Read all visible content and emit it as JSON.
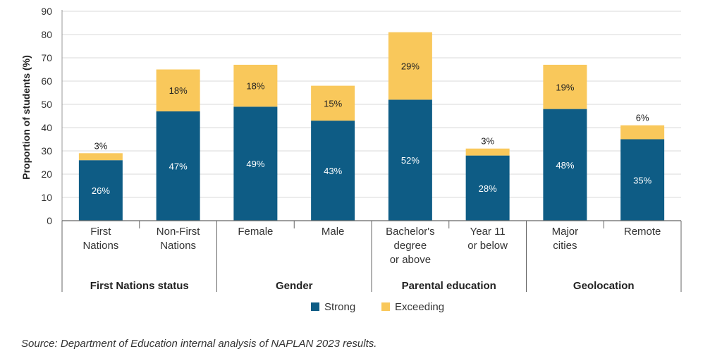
{
  "chart_data": {
    "type": "bar",
    "stacked": true,
    "ylabel": "Proportion of students (%)",
    "ylim": [
      0,
      90
    ],
    "yticks": [
      0,
      10,
      20,
      30,
      40,
      50,
      60,
      70,
      80,
      90
    ],
    "grid": true,
    "categories": [
      [
        "First",
        "Nations"
      ],
      [
        "Non-First",
        "Nations"
      ],
      [
        "Female"
      ],
      [
        "Male"
      ],
      [
        "Bachelor's",
        "degree",
        "or above"
      ],
      [
        "Year 11",
        "or below"
      ],
      [
        "Major",
        "cities"
      ],
      [
        "Remote"
      ]
    ],
    "groups": [
      {
        "label": "First Nations status",
        "span": [
          0,
          1
        ]
      },
      {
        "label": "Gender",
        "span": [
          2,
          3
        ]
      },
      {
        "label": "Parental education",
        "span": [
          4,
          5
        ]
      },
      {
        "label": "Geolocation",
        "span": [
          6,
          7
        ]
      }
    ],
    "series": [
      {
        "name": "Strong",
        "color": "#0e5c85",
        "values": [
          26,
          47,
          49,
          43,
          52,
          28,
          48,
          35
        ],
        "labels": [
          "26%",
          "47%",
          "49%",
          "43%",
          "52%",
          "28%",
          "48%",
          "35%"
        ]
      },
      {
        "name": "Exceeding",
        "color": "#f9c85b",
        "values": [
          3,
          18,
          18,
          15,
          29,
          3,
          19,
          6
        ],
        "labels": [
          "3%",
          "18%",
          "18%",
          "15%",
          "29%",
          "3%",
          "19%",
          "6%"
        ]
      }
    ],
    "legend": "bottom-center"
  },
  "source": "Source: Department of Education internal analysis of NAPLAN 2023 results."
}
